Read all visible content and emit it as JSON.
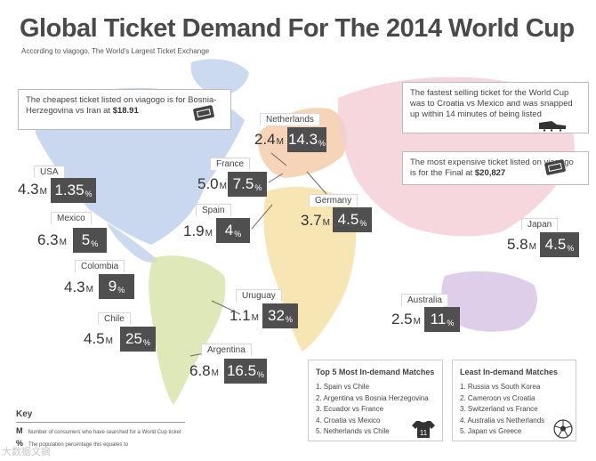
{
  "header": {
    "title": "Global Ticket Demand For The 2014 World Cup",
    "subtitle": "According to viagogo, The World's Largest Ticket Exchange"
  },
  "notes": {
    "cheapest": {
      "text": "The cheapest ticket listed on viagogo is for Bosnia-Herzegovina vs Iran at",
      "price": "$18.91"
    },
    "fastest": {
      "text": "The fastest selling ticket for the World Cup was to Croatia vs Mexico and was snapped up within 14 minutes of being listed"
    },
    "expensive": {
      "text": "The most expensive ticket listed on viagogo is for the Final at",
      "price": "$20,827"
    }
  },
  "chart_data": {
    "type": "table",
    "title": "Global Ticket Demand For The 2014 World Cup",
    "subtitle": "According to viagogo, The World's Largest Ticket Exchange",
    "unit_searchers": "M",
    "unit_share": "%",
    "countries": [
      {
        "name": "USA",
        "searchers": "4.3",
        "share": "1.35"
      },
      {
        "name": "Mexico",
        "searchers": "6.3",
        "share": "5"
      },
      {
        "name": "Colombia",
        "searchers": "4.3",
        "share": "9"
      },
      {
        "name": "Chile",
        "searchers": "4.5",
        "share": "25"
      },
      {
        "name": "Argentina",
        "searchers": "6.8",
        "share": "16.5"
      },
      {
        "name": "Uruguay",
        "searchers": "1.1",
        "share": "32"
      },
      {
        "name": "Spain",
        "searchers": "1.9",
        "share": "4"
      },
      {
        "name": "France",
        "searchers": "5.0",
        "share": "7.5"
      },
      {
        "name": "Netherlands",
        "searchers": "2.4",
        "share": "14.3"
      },
      {
        "name": "Germany",
        "searchers": "3.7",
        "share": "4.5"
      },
      {
        "name": "Japan",
        "searchers": "5.8",
        "share": "4.5"
      },
      {
        "name": "Australia",
        "searchers": "2.5",
        "share": "11"
      }
    ],
    "top_matches": {
      "title": "Top 5 Most In-demand Matches",
      "items": [
        "1. Spain vs Chile",
        "2. Argentina vs Bosnia Herzegovina",
        "3. Ecuador vs France",
        "4. Croatia vs Mexico",
        "5. Netherlands vs Chile"
      ],
      "badge": "11"
    },
    "least_matches": {
      "title": "Least In-demand Matches",
      "items": [
        "1. Russia vs South Korea",
        "2. Cameroon vs Croatia",
        "3. Switzerland vs France",
        "4. Australia vs Netherlands",
        "5. Japan vs Greece"
      ]
    }
  },
  "key": {
    "title": "Key",
    "m_symbol": "M",
    "m_text": "Number of consumers who have searched for a World Cup ticket",
    "pct_symbol": "%",
    "pct_text": "The population percentage this equates to"
  },
  "watermark": "大数据文摘",
  "colors": {
    "north_america": "#b7cbe8",
    "south_america": "#d6e2a8",
    "europe": "#f2c9a6",
    "africa": "#f5dfa0",
    "asia": "#f4cdd6",
    "oceania": "#d9c6e6",
    "value_box": "#4f4f4f"
  }
}
